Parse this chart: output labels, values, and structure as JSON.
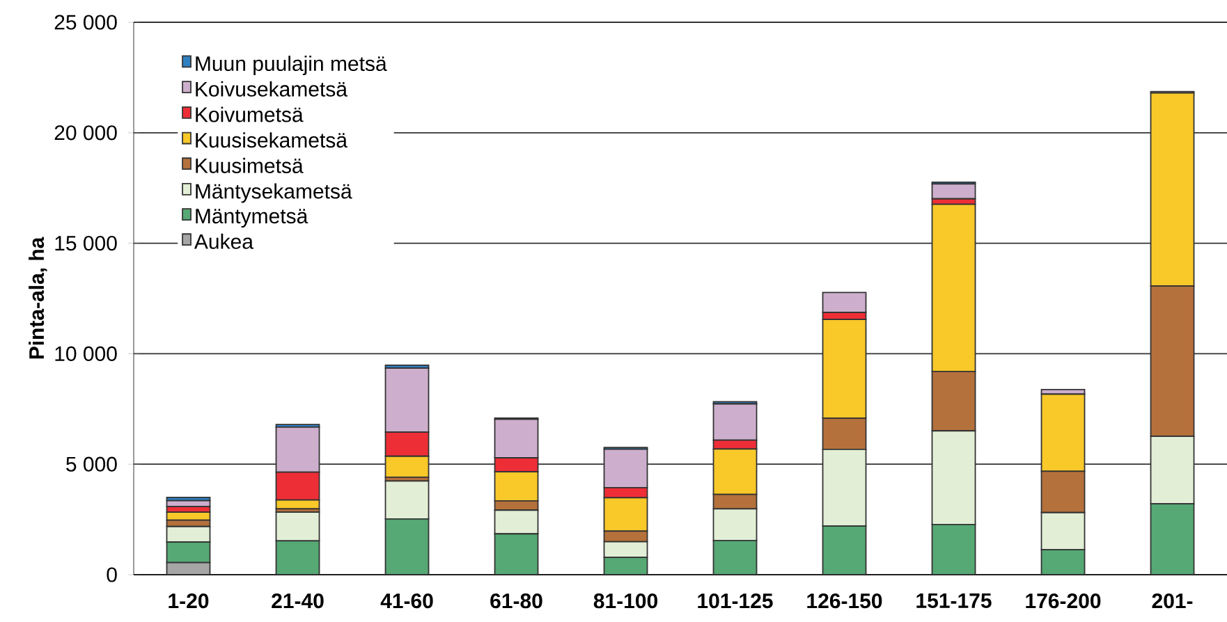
{
  "chart_data": {
    "type": "bar",
    "stacked": true,
    "ylabel": "Pinta-ala, ha",
    "categories": [
      "1-20",
      "21-40",
      "41-60",
      "61-80",
      "81-100",
      "101-125",
      "126-150",
      "151-175",
      "176-200",
      "201-"
    ],
    "series": [
      {
        "name": "Aukea",
        "color": "#a6a6a6",
        "values": [
          550,
          0,
          0,
          0,
          0,
          0,
          0,
          0,
          0,
          0
        ]
      },
      {
        "name": "Mäntymetsä",
        "color": "#56a874",
        "values": [
          930,
          1530,
          2520,
          1850,
          780,
          1550,
          2200,
          2270,
          1130,
          3210
        ]
      },
      {
        "name": "Mäntysekametsä",
        "color": "#e2efd6",
        "values": [
          700,
          1300,
          1720,
          1070,
          710,
          1430,
          3470,
          4240,
          1680,
          3050
        ]
      },
      {
        "name": "Kuusimetsä",
        "color": "#b5713c",
        "values": [
          290,
          150,
          170,
          420,
          480,
          650,
          1410,
          2690,
          1870,
          6800
        ]
      },
      {
        "name": "Kuusisekametsä",
        "color": "#f9c829",
        "values": [
          360,
          400,
          950,
          1320,
          1510,
          2060,
          4470,
          7560,
          3490,
          8740
        ]
      },
      {
        "name": "Koivumetsä",
        "color": "#ee2e37",
        "values": [
          250,
          1260,
          1090,
          630,
          460,
          400,
          320,
          250,
          0,
          null
        ]
      },
      {
        "name": "Koivusekametsä",
        "color": "#cdafcd",
        "values": [
          270,
          2040,
          2900,
          1740,
          1740,
          1640,
          900,
          670,
          210,
          60
        ]
      },
      {
        "name": "Muun puulajin metsä",
        "color": "#2f7fc1",
        "values": [
          150,
          120,
          130,
          60,
          80,
          100,
          null,
          80,
          null,
          null
        ]
      }
    ],
    "ylim": [
      0,
      25000
    ],
    "yticks": [
      0,
      {
        "value": 5000,
        "label": "5 000"
      },
      {
        "value": 10000,
        "label": "10 000"
      },
      {
        "value": 15000,
        "label": "15 000"
      },
      {
        "value": 20000,
        "label": "20 000"
      },
      {
        "value": 25000,
        "label": "25 000"
      }
    ],
    "grid": "y",
    "legend": "top left"
  }
}
